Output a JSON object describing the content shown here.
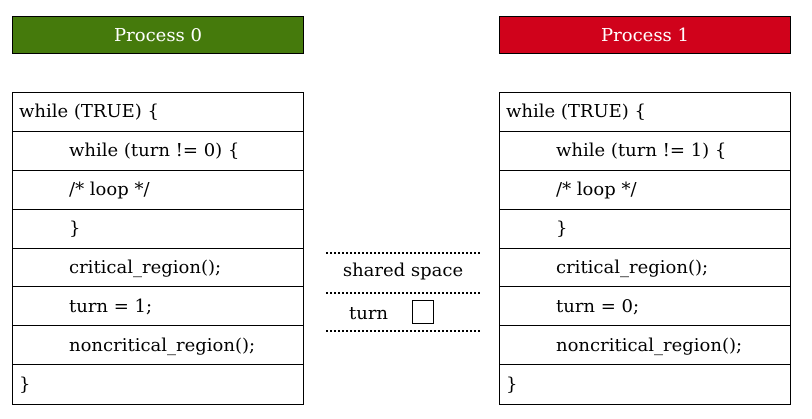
{
  "colors": {
    "process0_header": "#457a0c",
    "process1_header": "#d0021b"
  },
  "process0": {
    "title": "Process 0",
    "lines": [
      {
        "text": "while (TRUE) {",
        "indent": 0
      },
      {
        "text": "while (turn != 0) {",
        "indent": 1
      },
      {
        "text": "/* loop */",
        "indent": 1
      },
      {
        "text": "}",
        "indent": 1
      },
      {
        "text": "critical_region();",
        "indent": 1
      },
      {
        "text": "turn = 1;",
        "indent": 1
      },
      {
        "text": "noncritical_region();",
        "indent": 1
      },
      {
        "text": "}",
        "indent": 0
      }
    ]
  },
  "process1": {
    "title": "Process 1",
    "lines": [
      {
        "text": "while (TRUE) {",
        "indent": 0
      },
      {
        "text": "while (turn != 1) {",
        "indent": 1
      },
      {
        "text": "/* loop */",
        "indent": 1
      },
      {
        "text": "}",
        "indent": 1
      },
      {
        "text": "critical_region();",
        "indent": 1
      },
      {
        "text": "turn = 0;",
        "indent": 1
      },
      {
        "text": "noncritical_region();",
        "indent": 1
      },
      {
        "text": "}",
        "indent": 0
      }
    ]
  },
  "shared": {
    "label": "shared space",
    "variable": "turn"
  }
}
